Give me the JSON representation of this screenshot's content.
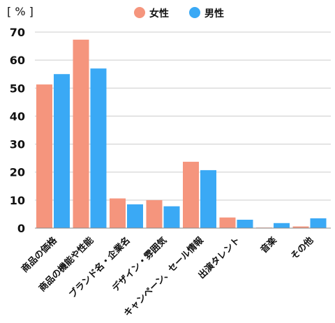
{
  "chart_data": {
    "type": "bar",
    "unit_label": "[ % ]",
    "categories": [
      "商品の価格",
      "商品の機能や性能",
      "ブランド名・企業名",
      "デザイン・雰囲気",
      "キャンペーン、セール情報",
      "出演タレント",
      "音楽",
      "その他"
    ],
    "series": [
      {
        "name": "女性",
        "color": "#f5957d",
        "values": [
          51.3,
          67.3,
          10.6,
          10.0,
          23.7,
          3.8,
          0.2,
          0.6
        ]
      },
      {
        "name": "男性",
        "color": "#3aa9f5",
        "values": [
          55.0,
          57.0,
          8.5,
          7.8,
          20.7,
          3.0,
          1.8,
          3.5
        ]
      }
    ],
    "yticks": [
      0,
      10,
      20,
      30,
      40,
      50,
      60,
      70
    ],
    "ylim": [
      0,
      70
    ],
    "grid": true,
    "legend_position": "top"
  }
}
